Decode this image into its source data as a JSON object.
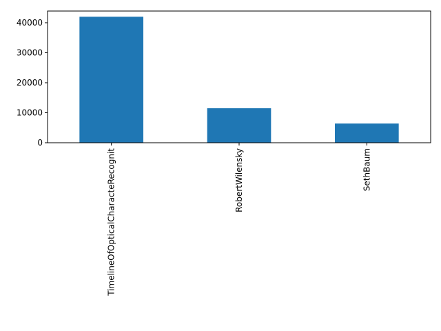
{
  "chart_data": {
    "type": "bar",
    "categories": [
      "TimelineOfOpticalCharacteRecognit",
      "RobertWilensky",
      "SethBaum"
    ],
    "values": [
      42000,
      11500,
      6400
    ],
    "color": "#1f77b4",
    "ylim": [
      0,
      43900
    ],
    "yticks": [
      0,
      10000,
      20000,
      30000,
      40000
    ],
    "grid": false
  }
}
